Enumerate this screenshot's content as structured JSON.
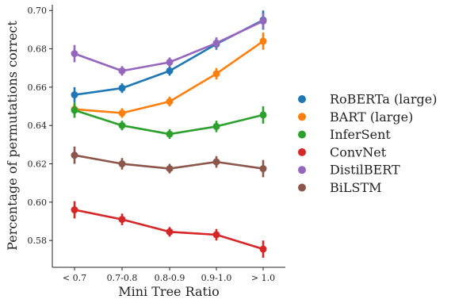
{
  "chart_data": {
    "type": "line",
    "title": "",
    "xlabel": "Mini Tree Ratio",
    "ylabel": "Percentage of permutations correct",
    "categories": [
      "< 0.7",
      "0.7-0.8",
      "0.8-0.9",
      "0.9-1.0",
      "> 1.0"
    ],
    "ylim": [
      0.566,
      0.703
    ],
    "yticks": [
      "0.58",
      "0.60",
      "0.62",
      "0.64",
      "0.66",
      "0.68",
      "0.70"
    ],
    "ytick_values": [
      0.58,
      0.6,
      0.62,
      0.64,
      0.66,
      0.68,
      0.7
    ],
    "grid": false,
    "legend_position": "right",
    "series": [
      {
        "name": "RoBERTa (large)",
        "color": "#1f77b4",
        "values": [
          0.656,
          0.6595,
          0.6685,
          0.6825,
          0.695
        ],
        "errors": [
          0.004,
          0.0025,
          0.0025,
          0.003,
          0.005
        ]
      },
      {
        "name": "BART (large)",
        "color": "#ff7f0e",
        "values": [
          0.6485,
          0.6465,
          0.6525,
          0.667,
          0.684
        ],
        "errors": [
          0.003,
          0.0025,
          0.0025,
          0.003,
          0.0045
        ]
      },
      {
        "name": "InferSent",
        "color": "#2ca02c",
        "values": [
          0.648,
          0.64,
          0.6355,
          0.6395,
          0.6455
        ],
        "errors": [
          0.004,
          0.0025,
          0.0025,
          0.003,
          0.0045
        ]
      },
      {
        "name": "ConvNet",
        "color": "#d62728",
        "values": [
          0.596,
          0.591,
          0.5845,
          0.583,
          0.5755
        ],
        "errors": [
          0.0045,
          0.003,
          0.0025,
          0.003,
          0.0045
        ]
      },
      {
        "name": "DistilBERT",
        "color": "#9467bd",
        "values": [
          0.6775,
          0.6685,
          0.673,
          0.683,
          0.6945
        ],
        "errors": [
          0.0045,
          0.0025,
          0.0025,
          0.003,
          0.004
        ]
      },
      {
        "name": "BiLSTM",
        "color": "#8c564b",
        "values": [
          0.6245,
          0.62,
          0.6175,
          0.621,
          0.6175
        ],
        "errors": [
          0.0045,
          0.003,
          0.0025,
          0.003,
          0.0045
        ]
      }
    ]
  }
}
